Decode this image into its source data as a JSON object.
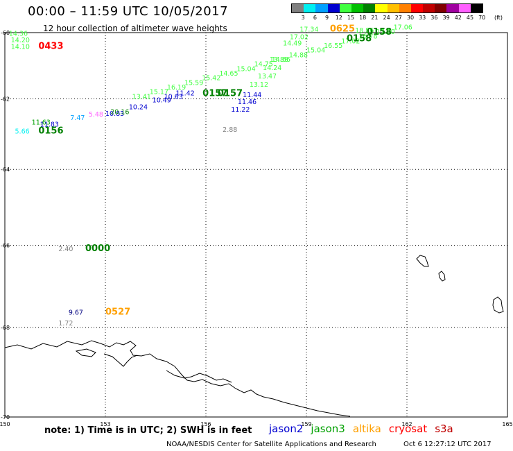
{
  "header": {
    "title": "00:00 – 11:59 UTC 10/05/2017",
    "subtitle": "12 hour collection of altimeter wave heights"
  },
  "legend": {
    "unit": "(ft)",
    "labels": [
      "3",
      "6",
      "9",
      "12",
      "15",
      "18",
      "21",
      "24",
      "27",
      "30",
      "33",
      "36",
      "39",
      "42",
      "45",
      "70"
    ],
    "colors": [
      "#808080",
      "#00f0f0",
      "#00a0ff",
      "#0000d0",
      "#40ff40",
      "#00c000",
      "#008000",
      "#ffff00",
      "#ffc000",
      "#ff8000",
      "#ff0000",
      "#c00000",
      "#800000",
      "#a000a0",
      "#ff60ff",
      "#000000"
    ]
  },
  "map": {
    "x_ticks": [
      "150",
      "153",
      "156",
      "159",
      "162",
      "165"
    ],
    "y_ticks": [
      "-60",
      "-62",
      "-64",
      "-66",
      "-68",
      "-70"
    ]
  },
  "annotations": [
    {
      "text": "14.36",
      "lon": 150.12,
      "lat": -60.1,
      "color": "#40ff40"
    },
    {
      "text": "14.20",
      "lon": 150.18,
      "lat": -60.3,
      "color": "#40ff40"
    },
    {
      "text": "14.10",
      "lon": 150.18,
      "lat": -60.5,
      "color": "#40ff40"
    },
    {
      "text": "0433",
      "lon": 151.0,
      "lat": -60.5,
      "color": "#ff0000",
      "label": true
    },
    {
      "text": "17.34",
      "lon": 158.8,
      "lat": -59.97,
      "color": "#40ff40"
    },
    {
      "text": "0625",
      "lon": 159.7,
      "lat": -59.97,
      "color": "#ffa000",
      "label": true
    },
    {
      "text": "18.86",
      "lon": 160.45,
      "lat": -60.0,
      "color": "#40ff40"
    },
    {
      "text": "17.02",
      "lon": 158.5,
      "lat": -60.2,
      "color": "#40ff40"
    },
    {
      "text": "0158",
      "lon": 160.8,
      "lat": -60.07,
      "color": "#008000",
      "label": true
    },
    {
      "text": "0158",
      "lon": 160.2,
      "lat": -60.27,
      "color": "#008000",
      "label": true
    },
    {
      "text": "14.49",
      "lon": 158.3,
      "lat": -60.4,
      "color": "#40ff40"
    },
    {
      "text": "13.88",
      "lon": 157.9,
      "lat": -60.9,
      "color": "#40ff40"
    },
    {
      "text": "13.47",
      "lon": 157.55,
      "lat": -61.4,
      "color": "#40ff40"
    },
    {
      "text": "14.24",
      "lon": 157.7,
      "lat": -61.15,
      "color": "#40ff40"
    },
    {
      "text": "13.12",
      "lon": 157.3,
      "lat": -61.65,
      "color": "#40ff40"
    },
    {
      "text": "11.44",
      "lon": 157.1,
      "lat": -61.95,
      "color": "#0000d0"
    },
    {
      "text": "11.46",
      "lon": 156.95,
      "lat": -62.15,
      "color": "#0000d0"
    },
    {
      "text": "11.22",
      "lon": 156.75,
      "lat": -62.38,
      "color": "#0000d0"
    },
    {
      "text": "0157",
      "lon": 156.35,
      "lat": -61.92,
      "color": "#008000",
      "label": true
    },
    {
      "text": "0157",
      "lon": 155.9,
      "lat": -61.92,
      "color": "#008000",
      "label": true
    },
    {
      "text": "10.63",
      "lon": 154.75,
      "lat": -62.0,
      "color": "#0000d0"
    },
    {
      "text": "20.16",
      "lon": 153.15,
      "lat": -62.45,
      "color": "#008000"
    },
    {
      "text": "7.47",
      "lon": 151.95,
      "lat": -62.62,
      "color": "#00a0ff"
    },
    {
      "text": "5.48",
      "lon": 152.5,
      "lat": -62.52,
      "color": "#ff60ff"
    },
    {
      "text": "11.83",
      "lon": 151.05,
      "lat": -62.8,
      "color": "#0000d0"
    },
    {
      "text": "5.66",
      "lon": 150.3,
      "lat": -63.0,
      "color": "#00f0f0"
    },
    {
      "text": "0156",
      "lon": 151.0,
      "lat": -63.0,
      "color": "#008000",
      "label": true
    },
    {
      "text": "2.88",
      "lon": 156.5,
      "lat": -62.95,
      "color": "#808080"
    },
    {
      "text": "2.40",
      "lon": 151.6,
      "lat": -66.15,
      "color": "#808080"
    },
    {
      "text": "0000",
      "lon": 152.4,
      "lat": -66.15,
      "color": "#008000",
      "label": true
    },
    {
      "text": "9.67",
      "lon": 151.9,
      "lat": -67.7,
      "color": "#000080"
    },
    {
      "text": "0527",
      "lon": 153.0,
      "lat": -67.7,
      "color": "#ffa000",
      "label": true
    },
    {
      "text": "1.72",
      "lon": 151.6,
      "lat": -67.95,
      "color": "#808080"
    }
  ],
  "tracks": [
    {
      "name": "track-jason3-main",
      "color": "#40ff40",
      "from": [
        153.8,
        -62.0
      ],
      "to": [
        161.6,
        -59.9
      ],
      "labels": [
        "13.41",
        "15.17",
        "16.19",
        "15.59",
        "15.42",
        "14.65",
        "15.04",
        "14.75",
        "14.66",
        "14.88",
        "15.04",
        "16.55",
        "17.02",
        "16.78",
        "17.70",
        "17.06"
      ]
    },
    {
      "name": "track-jason2-mid",
      "color": "#0000d0",
      "from": [
        153.0,
        -62.5
      ],
      "to": [
        155.1,
        -61.9
      ],
      "labels": [
        "10.83",
        "10.24",
        "10.49",
        "11.42"
      ]
    },
    {
      "name": "track-jason3-west",
      "color": "#00a000",
      "from": [
        150.8,
        -62.75
      ],
      "to": [
        151.4,
        -62.9
      ],
      "labels": [
        "11.63"
      ]
    }
  ],
  "note": {
    "text": "note: 1) Time is in UTC; 2) SWH is in feet"
  },
  "satellites": [
    {
      "name": "jason2",
      "color": "#0000d0"
    },
    {
      "name": "jason3",
      "color": "#00a000"
    },
    {
      "name": "altika",
      "color": "#ffa000"
    },
    {
      "name": "cryosat",
      "color": "#ff0000"
    },
    {
      "name": "s3a",
      "color": "#c00000"
    }
  ],
  "footer": {
    "credit": "NOAA/NESDIS Center for Satellite Applications and Research",
    "timestamp": "Oct 6 12:27:12 UTC 2017"
  }
}
